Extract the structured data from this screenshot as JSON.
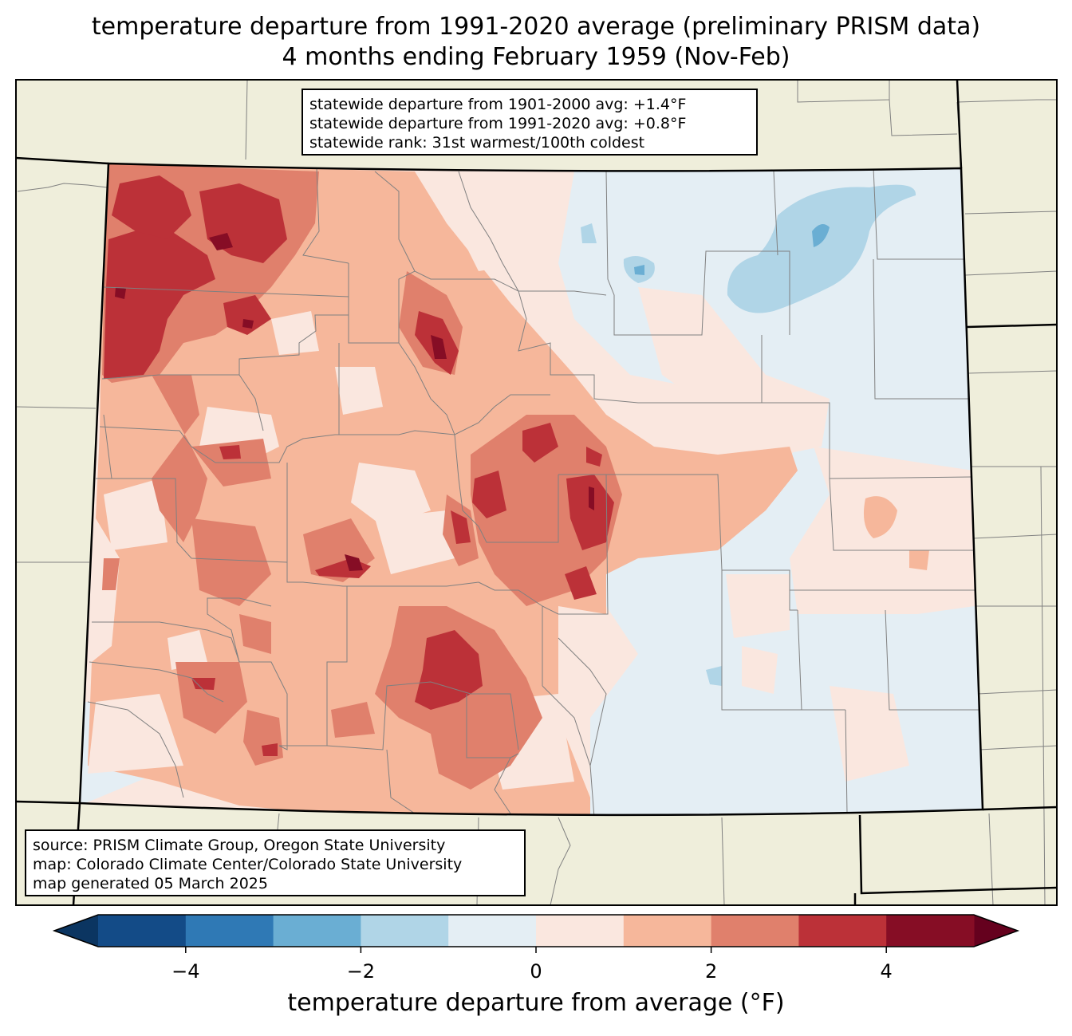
{
  "title": {
    "line1": "temperature departure from 1991-2020 average (preliminary PRISM data)",
    "line2": "4 months ending February 1959 (Nov-Feb)"
  },
  "stats": {
    "line1": "statewide departure from 1901-2000 avg: +1.4°F",
    "line2": "statewide departure from 1991-2020 avg: +0.8°F",
    "line3": "statewide rank: 31st warmest/100th coldest"
  },
  "source": {
    "line1": "source: PRISM Climate Group, Oregon State University",
    "line2": "map: Colorado Climate Center/Colorado State University",
    "line3": "map generated 05 March 2025"
  },
  "colorbar": {
    "label": "temperature departure from average (°F)",
    "ticks": [
      "−4",
      "−2",
      "0",
      "2",
      "4"
    ],
    "bins": [
      {
        "from": -5,
        "to": -4,
        "color": "#134b87"
      },
      {
        "from": -4,
        "to": -3,
        "color": "#2f79b5"
      },
      {
        "from": -3,
        "to": -2,
        "color": "#6aaed3"
      },
      {
        "from": -2,
        "to": -1,
        "color": "#b0d5e7"
      },
      {
        "from": -1,
        "to": 0,
        "color": "#e4eef4"
      },
      {
        "from": 0,
        "to": 1,
        "color": "#fae7df"
      },
      {
        "from": 1,
        "to": 2,
        "color": "#f6b79b"
      },
      {
        "from": 2,
        "to": 3,
        "color": "#e0806c"
      },
      {
        "from": 3,
        "to": 4,
        "color": "#bc3138"
      },
      {
        "from": 4,
        "to": 5,
        "color": "#860d25"
      }
    ],
    "under_color": "#0b3561",
    "over_color": "#65011e"
  },
  "colors": {
    "land": "#efeedb",
    "county_lines": "#808080",
    "state_lines": "#000000"
  }
}
